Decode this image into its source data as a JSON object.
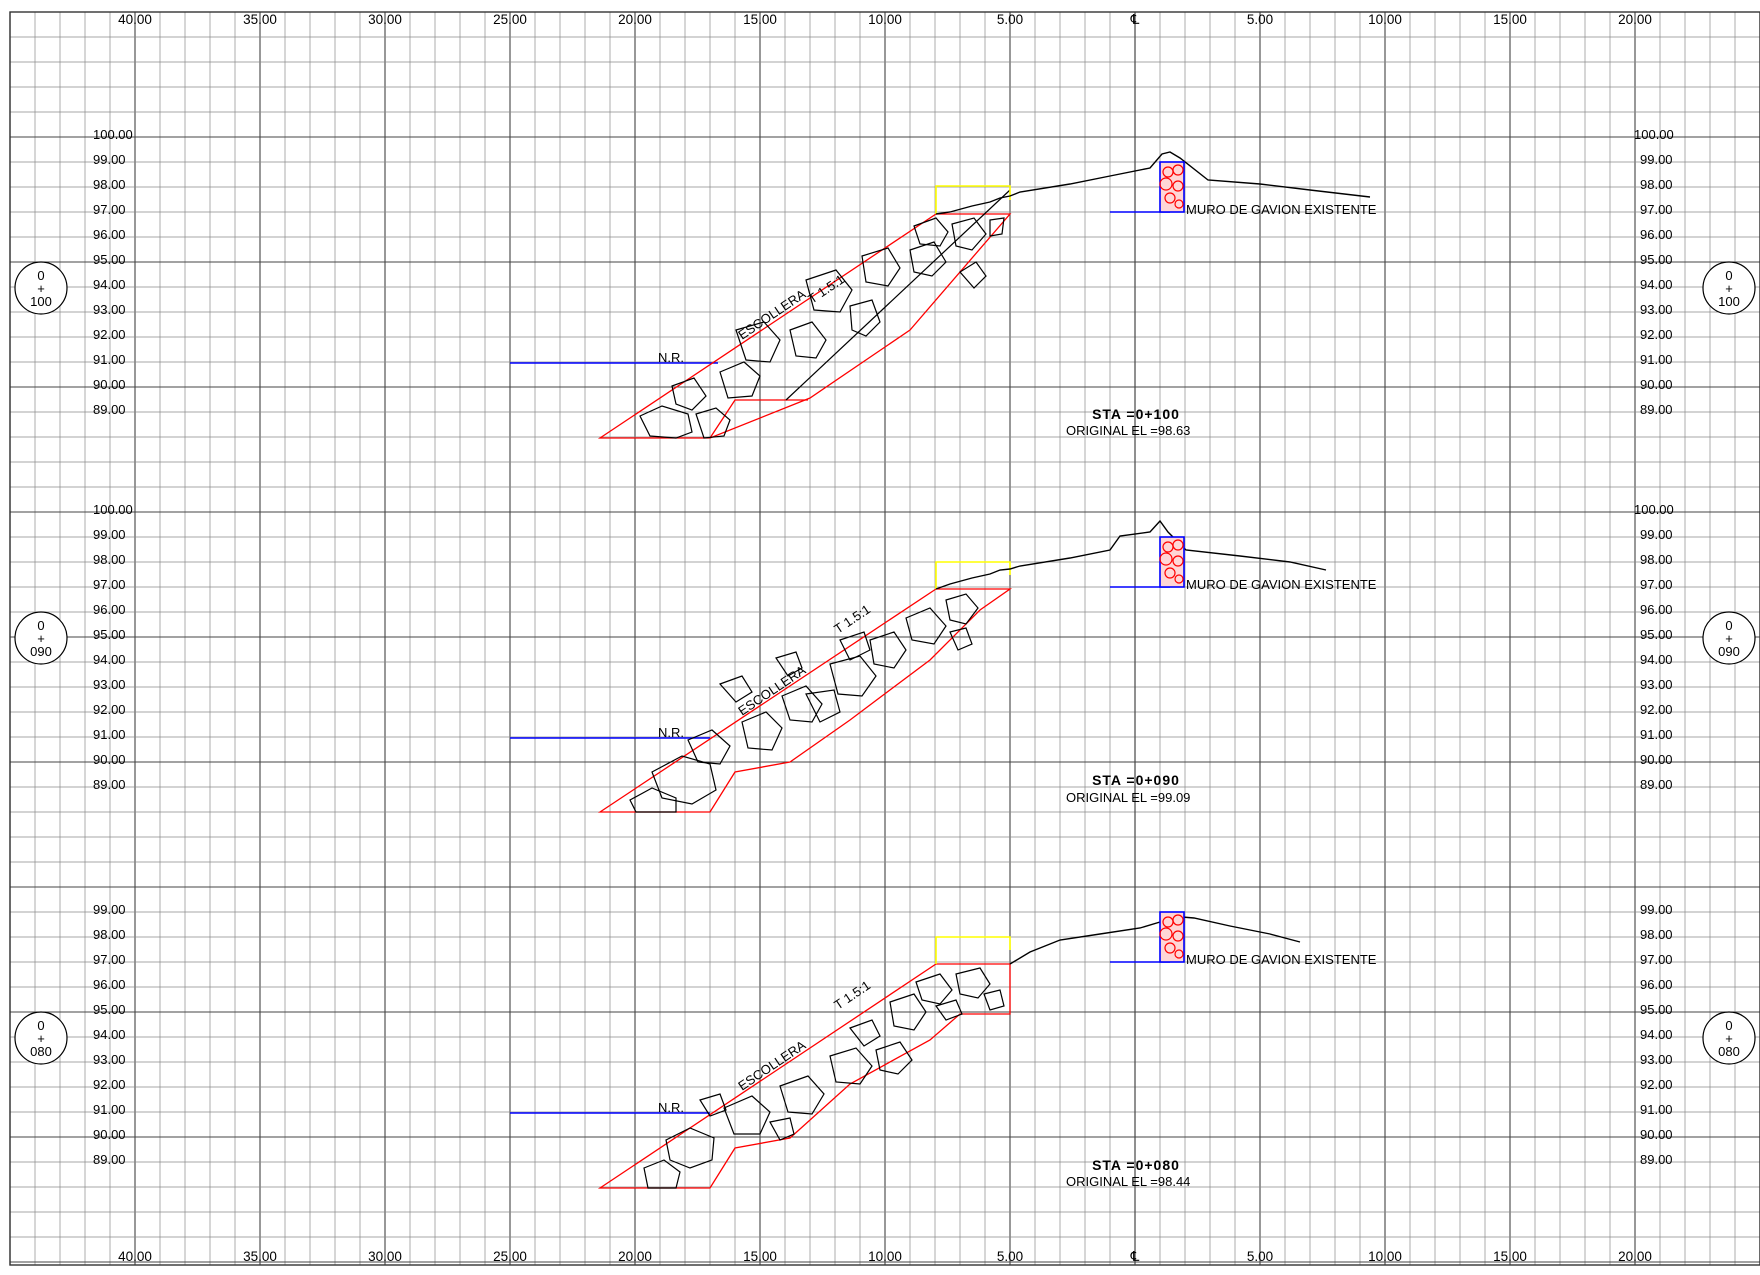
{
  "colors": {
    "grid": "#8a8a8a",
    "grid_major": "#444444",
    "terrain": "#000000",
    "riprap_outline": "#ff0000",
    "water_level": "#0000ff",
    "crown_marker": "#ffff00",
    "gabion_fill": "#ff0000",
    "gabion_outline": "#0000ff"
  },
  "top_axis": [
    "40.00",
    "35.00",
    "30.00",
    "25.00",
    "20.00",
    "15.00",
    "10.00",
    "5.00",
    "℄",
    "5.00",
    "10.00",
    "15.00",
    "20.00"
  ],
  "bottom_axis": [
    "40.00",
    "35.00",
    "30.00",
    "25.00",
    "20.00",
    "15.00",
    "10.00",
    "5.00",
    "℄",
    "5.00",
    "10.00",
    "15.00",
    "20.00"
  ],
  "sections": [
    {
      "station_bubble": [
        "0",
        "+",
        "100"
      ],
      "elevations": [
        "100.00",
        "99.00",
        "98.00",
        "97.00",
        "96.00",
        "95.00",
        "94.00",
        "93.00",
        "92.00",
        "91.00",
        "90.00",
        "89.00"
      ],
      "escollera_label": "ESCOLLERA",
      "slope_label": "T 1.5:1",
      "water_label": "N.R.",
      "gabion_label": "MURO DE GAVION EXISTENTE",
      "sta_label": "STA =0+100",
      "original_label": "ORIGINAL EL =98.63"
    },
    {
      "station_bubble": [
        "0",
        "+",
        "090"
      ],
      "elevations": [
        "100.00",
        "99.00",
        "98.00",
        "97.00",
        "96.00",
        "95.00",
        "94.00",
        "93.00",
        "92.00",
        "91.00",
        "90.00",
        "89.00"
      ],
      "escollera_label": "ESCOLLERA",
      "slope_label": "T 1.5:1",
      "water_label": "N.R.",
      "gabion_label": "MURO DE GAVION EXISTENTE",
      "sta_label": "STA =0+090",
      "original_label": "ORIGINAL EL =99.09"
    },
    {
      "station_bubble": [
        "0",
        "+",
        "080"
      ],
      "elevations": [
        "99.00",
        "98.00",
        "97.00",
        "96.00",
        "95.00",
        "94.00",
        "93.00",
        "92.00",
        "91.00",
        "90.00",
        "89.00"
      ],
      "escollera_label": "ESCOLLERA",
      "slope_label": "T 1.5:1",
      "water_label": "N.R.",
      "gabion_label": "MURO DE GAVION EXISTENTE",
      "sta_label": "STA =0+080",
      "original_label": "ORIGINAL EL =98.44"
    }
  ]
}
